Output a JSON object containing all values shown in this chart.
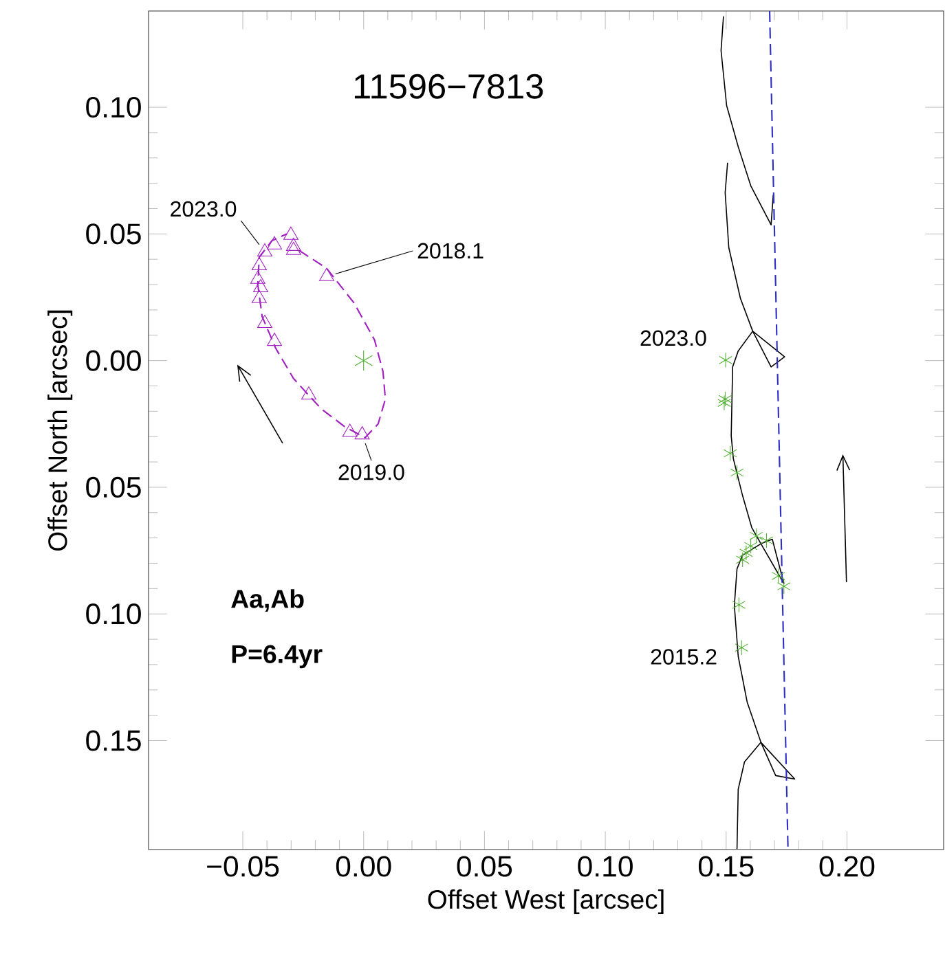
{
  "chart_data": {
    "type": "scatter",
    "title": "11596−7813",
    "xlabel": "Offset West [arcsec]",
    "ylabel": "Offset North [arcsec]",
    "xlim": [
      -0.089,
      0.24
    ],
    "ylim": [
      -0.193,
      0.138
    ],
    "xticks": [
      {
        "value": -0.05,
        "label": "−0.05"
      },
      {
        "value": 0.0,
        "label": "0.00"
      },
      {
        "value": 0.05,
        "label": "0.05"
      },
      {
        "value": 0.1,
        "label": "0.10"
      },
      {
        "value": 0.15,
        "label": "0.15"
      },
      {
        "value": 0.2,
        "label": "0.20"
      }
    ],
    "yticks": [
      {
        "value": -0.15,
        "label": "0.15"
      },
      {
        "value": -0.1,
        "label": "0.10"
      },
      {
        "value": -0.05,
        "label": "0.05"
      },
      {
        "value": 0.0,
        "label": "0.00"
      },
      {
        "value": 0.05,
        "label": "0.05"
      },
      {
        "value": 0.1,
        "label": "0.10"
      }
    ],
    "grid": false,
    "series": [
      {
        "type": "line",
        "color": "#a020c0",
        "line_style": "dashed",
        "marker": "none",
        "x": [
          -0.0267,
          -0.0153,
          -0.004,
          0.0045,
          0.008,
          0.009,
          0.006,
          0.0006,
          -0.008,
          -0.0176,
          -0.029,
          -0.0364,
          -0.042,
          -0.0438,
          -0.0432,
          -0.038,
          -0.0318
        ],
        "values": [
          0.0435,
          0.0364,
          0.0228,
          0.0082,
          -0.0043,
          -0.0152,
          -0.025,
          -0.0304,
          -0.026,
          -0.019,
          -0.0071,
          0.0049,
          0.0174,
          0.03,
          0.0408,
          0.0473,
          0.05
        ]
      },
      {
        "type": "scatter",
        "color": "#a020c0",
        "marker": "triangle",
        "x": [
          -0.0301,
          -0.029,
          -0.029,
          -0.0369,
          -0.0409,
          -0.0432,
          -0.0438,
          -0.0426,
          -0.0432,
          -0.0409,
          -0.0369,
          -0.0227,
          -0.0153,
          -0.0057,
          -0.0006
        ],
        "values": [
          0.0495,
          0.0451,
          0.0435,
          0.0457,
          0.0429,
          0.0375,
          0.0321,
          0.0288,
          0.0245,
          0.0147,
          0.0076,
          -0.0136,
          0.0332,
          -0.0283,
          -0.0293
        ]
      },
      {
        "type": "scatter",
        "color": "#50b030",
        "marker": "cross",
        "x": [
          0.0
        ],
        "values": [
          0.0
        ]
      },
      {
        "type": "line",
        "color": "#000000",
        "line_style": "solid",
        "marker": "none",
        "x": [
          0.1489,
          0.1479,
          0.1502,
          0.155,
          0.1602,
          0.1686,
          0.1695,
          null,
          0.1506,
          0.1496,
          0.1511,
          0.1559,
          0.161,
          0.1742,
          0.1686,
          0.161,
          0.155,
          0.1527,
          0.1521,
          0.153,
          0.1568,
          0.1606,
          0.1644,
          0.1739,
          0.1691,
          0.1644,
          0.1568,
          0.1545,
          0.1534,
          0.155,
          0.1587,
          0.1644,
          0.1784,
          0.1705,
          0.1644,
          0.1576,
          0.155,
          0.1545
        ],
        "values": [
          0.1359,
          0.1224,
          0.1007,
          0.0844,
          0.069,
          0.0536,
          0.0654,
          null,
          0.0781,
          0.0663,
          0.0446,
          0.0246,
          0.0116,
          0.0015,
          -0.0025,
          0.0116,
          0.0038,
          -0.0025,
          -0.0297,
          -0.0388,
          -0.0533,
          -0.0659,
          -0.0723,
          -0.088,
          -0.0705,
          -0.0723,
          -0.0768,
          -0.0822,
          -0.0967,
          -0.1167,
          -0.1348,
          -0.1507,
          -0.1652,
          -0.1638,
          -0.1507,
          -0.1584,
          -0.1692,
          -0.1928
        ]
      },
      {
        "type": "scatter",
        "color": "#50b030",
        "marker": "cross",
        "x": [
          0.1498,
          0.1492,
          0.1496,
          0.1517,
          0.1545,
          0.1625,
          0.1667,
          0.1602,
          0.1583,
          0.1568,
          0.1716,
          0.1739,
          0.1553,
          0.1564
        ],
        "values": [
          0.0002,
          -0.0167,
          -0.0152,
          -0.0366,
          -0.0442,
          -0.0692,
          -0.071,
          -0.0732,
          -0.0759,
          -0.0786,
          -0.085,
          -0.0891,
          -0.0964,
          -0.1133
        ]
      },
      {
        "type": "line",
        "color": "#3030c0",
        "line_style": "dashed",
        "marker": "none",
        "x": [
          0.168,
          0.1756
        ],
        "values": [
          0.138,
          -0.193
        ]
      }
    ],
    "annotations": [
      {
        "text": "2023.0",
        "x": -0.0409,
        "y": 0.0429
      },
      {
        "text": "2018.1",
        "x": -0.0153,
        "y": 0.0332
      },
      {
        "text": "2019.0",
        "x": -0.0006,
        "y": -0.0293
      },
      {
        "text": "2023.0",
        "x": 0.1498,
        "y": 0.0002
      },
      {
        "text": "2015.2",
        "x": 0.1564,
        "y": -0.1133
      },
      "Aa,Ab",
      "P=6.4yr"
    ]
  }
}
